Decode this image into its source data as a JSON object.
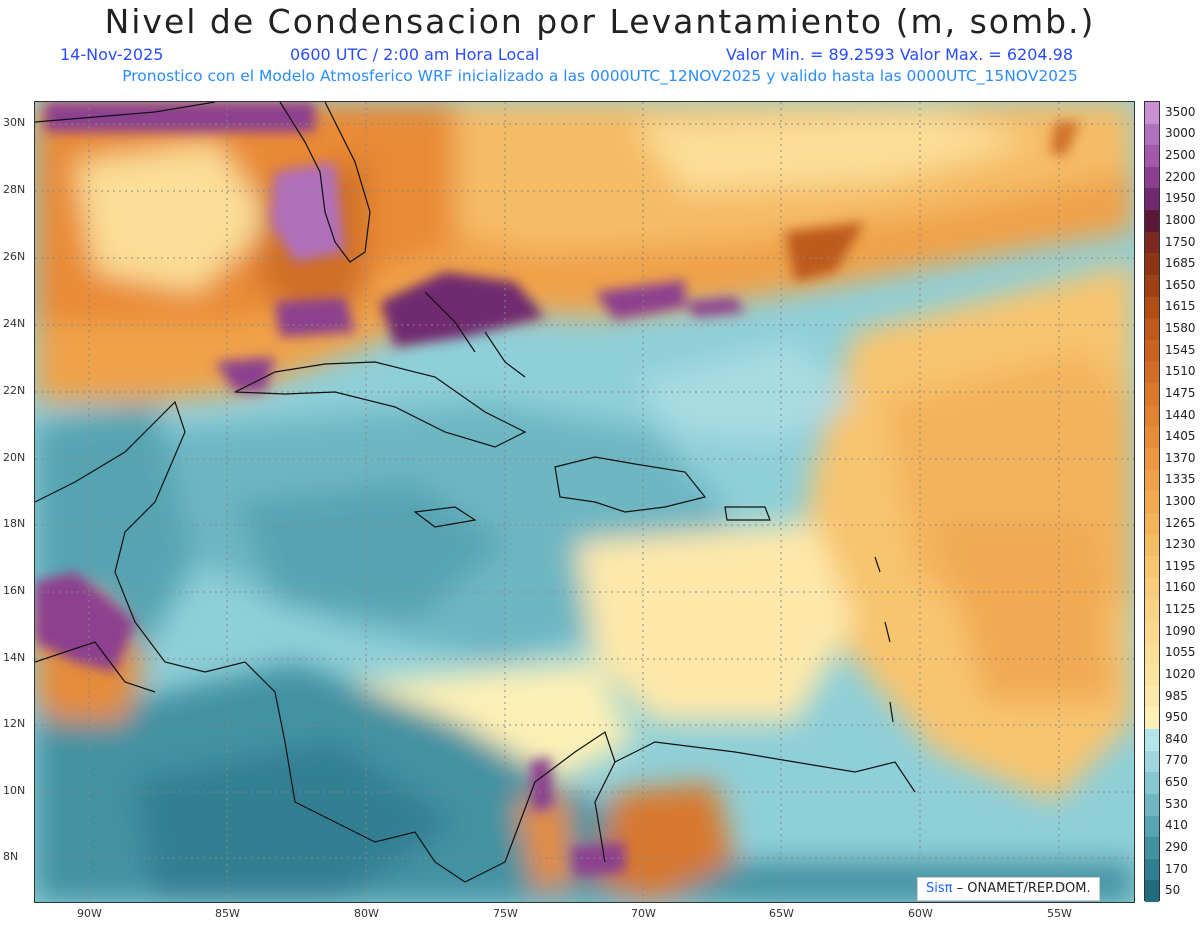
{
  "header": {
    "title": "Nivel de Condensacion por Levantamiento (m, somb.)",
    "date": "14-Nov-2025",
    "time": "0600 UTC / 2:00 am Hora Local",
    "min_max": "Valor Min. = 89.2593  Valor Max. = 6204.98",
    "forecast_info": "Pronostico con el Modelo Atmosferico WRF inicializado a las 0000UTC_12NOV2025 y valido hasta las  0000UTC_15NOV2025"
  },
  "axes": {
    "latitude_labels": [
      "30N",
      "28N",
      "26N",
      "24N",
      "22N",
      "20N",
      "18N",
      "16N",
      "14N",
      "12N",
      "10N",
      "8N"
    ],
    "longitude_labels": [
      "90W",
      "85W",
      "80W",
      "75W",
      "70W",
      "65W",
      "60W",
      "55W"
    ]
  },
  "colorbar": {
    "labels": [
      "3500",
      "3000",
      "2500",
      "2200",
      "1950",
      "1800",
      "1750",
      "1685",
      "1650",
      "1615",
      "1580",
      "1545",
      "1510",
      "1475",
      "1440",
      "1405",
      "1370",
      "1335",
      "1300",
      "1265",
      "1230",
      "1195",
      "1160",
      "1125",
      "1090",
      "1055",
      "1020",
      "985",
      "950",
      "840",
      "770",
      "650",
      "530",
      "410",
      "290",
      "170",
      "50"
    ],
    "colors": [
      "#c890d0",
      "#b070bb",
      "#a05aa8",
      "#8c3f8f",
      "#6f2a6f",
      "#5a1838",
      "#7a2a20",
      "#8e3518",
      "#a04015",
      "#b04e18",
      "#bd5a1c",
      "#c86422",
      "#d06e28",
      "#d8782e",
      "#df8234",
      "#e58c3b",
      "#ea9642",
      "#eea04a",
      "#f1aa52",
      "#f3b35c",
      "#f5bc66",
      "#f7c470",
      "#f8cc7a",
      "#f9d384",
      "#fad98e",
      "#fbde97",
      "#fce3a0",
      "#fde8aa",
      "#fdf0b6",
      "#b3e4ea",
      "#9fd6de",
      "#86c7d1",
      "#6db6c2",
      "#56a4b2",
      "#4292a2",
      "#317f92",
      "#226c80"
    ]
  },
  "credit": {
    "sis": "Sisπ",
    "org": " – ONAMET/REP.DOM."
  },
  "colors": {
    "title": "#222222",
    "subtitle": "#2a4cff",
    "forecast": "#2a8cff",
    "coastline": "#111111"
  }
}
